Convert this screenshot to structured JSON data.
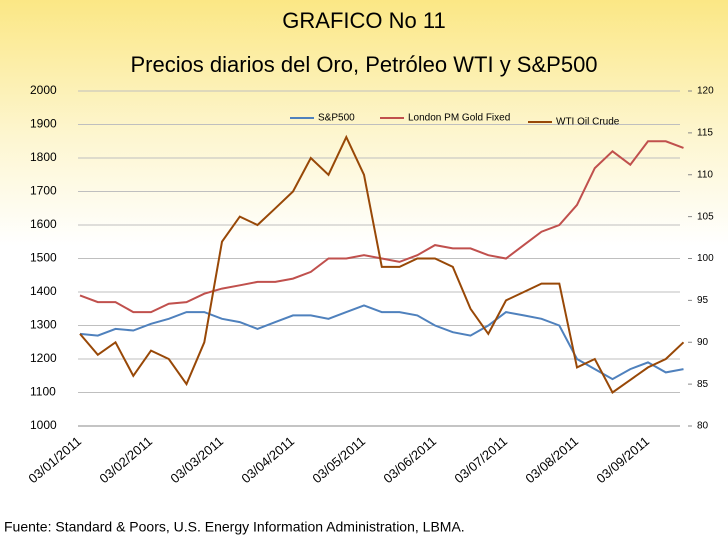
{
  "chart_data": {
    "type": "line",
    "title": "GRAFICO No 11",
    "subtitle": "Precios diarios del Oro, Petróleo WTI y S&P500",
    "source": "Fuente: Standard & Poors, U.S. Energy Information Administration, LBMA.",
    "categories": [
      "03/01/2011",
      null,
      null,
      null,
      "03/02/2011",
      null,
      null,
      null,
      "03/03/2011",
      null,
      null,
      null,
      "03/04/2011",
      null,
      null,
      null,
      "03/05/2011",
      null,
      null,
      null,
      "03/06/2011",
      null,
      null,
      null,
      "03/07/2011",
      null,
      null,
      null,
      "03/08/2011",
      null,
      null,
      null,
      "03/09/2011",
      null,
      null
    ],
    "series": [
      {
        "name": "S&P500",
        "color": "#4f81bd",
        "values": [
          1275,
          1270,
          1290,
          1285,
          1305,
          1320,
          1340,
          1340,
          1320,
          1310,
          1290,
          1310,
          1330,
          1330,
          1320,
          1340,
          1360,
          1340,
          1340,
          1330,
          1300,
          1280,
          1270,
          1300,
          1340,
          1330,
          1320,
          1300,
          1200,
          1170,
          1140,
          1170,
          1190,
          1160,
          1170
        ]
      },
      {
        "name": "London PM Gold Fixed",
        "color": "#c0504d",
        "values": [
          1390,
          1370,
          1370,
          1340,
          1340,
          1365,
          1370,
          1395,
          1410,
          1420,
          1430,
          1430,
          1440,
          1460,
          1500,
          1500,
          1510,
          1500,
          1490,
          1510,
          1540,
          1530,
          1530,
          1510,
          1500,
          1540,
          1580,
          1600,
          1660,
          1770,
          1820,
          1780,
          1850,
          1850,
          1830
        ]
      },
      {
        "name": "WTI Oil Crude",
        "color": "#984807",
        "axis": "y2",
        "values": [
          91,
          88.5,
          90,
          86,
          89,
          88,
          85,
          90,
          102,
          105,
          104,
          106,
          108,
          112,
          110,
          114.5,
          110,
          99,
          99,
          100,
          100,
          99,
          94,
          91,
          95,
          96,
          97,
          97,
          87,
          88,
          84,
          85.5,
          87,
          88,
          90
        ]
      }
    ],
    "ylim": [
      1000,
      2000
    ],
    "yticks": [
      1000,
      1100,
      1200,
      1300,
      1400,
      1500,
      1600,
      1700,
      1800,
      1900,
      2000
    ],
    "y2lim": [
      80,
      120
    ],
    "y2ticks": [
      80,
      85,
      90,
      95,
      100,
      105,
      110,
      115,
      120
    ],
    "grid": true
  }
}
